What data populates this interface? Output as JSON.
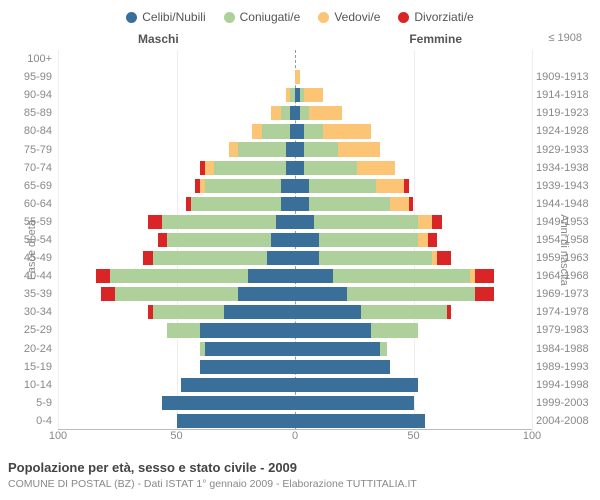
{
  "legend": [
    {
      "label": "Celibi/Nubili",
      "color": "#3a6f9a"
    },
    {
      "label": "Coniugati/e",
      "color": "#aed09a"
    },
    {
      "label": "Vedovi/e",
      "color": "#fbc575"
    },
    {
      "label": "Divorziati/e",
      "color": "#d92525"
    }
  ],
  "headers": {
    "male": "Maschi",
    "female": "Femmine",
    "right_top": "≤ 1908"
  },
  "axis": {
    "y_left_title": "Fasce di età",
    "y_right_title": "Anni di nascita",
    "x_max": 100,
    "x_ticks": [
      100,
      50,
      0,
      50,
      100
    ]
  },
  "footer": {
    "title": "Popolazione per età, sesso e stato civile - 2009",
    "sub": "COMUNE DI POSTAL (BZ) - Dati ISTAT 1° gennaio 2009 - Elaborazione TUTTITALIA.IT"
  },
  "rows": [
    {
      "age": "0-4",
      "year": "2004-2008",
      "m": [
        50,
        0,
        0,
        0
      ],
      "f": [
        55,
        0,
        0,
        0
      ]
    },
    {
      "age": "5-9",
      "year": "1999-2003",
      "m": [
        56,
        0,
        0,
        0
      ],
      "f": [
        50,
        0,
        0,
        0
      ]
    },
    {
      "age": "10-14",
      "year": "1994-1998",
      "m": [
        48,
        0,
        0,
        0
      ],
      "f": [
        52,
        0,
        0,
        0
      ]
    },
    {
      "age": "15-19",
      "year": "1989-1993",
      "m": [
        40,
        0,
        0,
        0
      ],
      "f": [
        40,
        0,
        0,
        0
      ]
    },
    {
      "age": "20-24",
      "year": "1984-1988",
      "m": [
        38,
        2,
        0,
        0
      ],
      "f": [
        36,
        3,
        0,
        0
      ]
    },
    {
      "age": "25-29",
      "year": "1979-1983",
      "m": [
        40,
        14,
        0,
        0
      ],
      "f": [
        32,
        20,
        0,
        0
      ]
    },
    {
      "age": "30-34",
      "year": "1974-1978",
      "m": [
        30,
        30,
        0,
        2
      ],
      "f": [
        28,
        36,
        0,
        2
      ]
    },
    {
      "age": "35-39",
      "year": "1969-1973",
      "m": [
        24,
        52,
        0,
        6
      ],
      "f": [
        22,
        54,
        0,
        8
      ]
    },
    {
      "age": "40-44",
      "year": "1964-1968",
      "m": [
        20,
        58,
        0,
        6
      ],
      "f": [
        16,
        58,
        2,
        8
      ]
    },
    {
      "age": "45-49",
      "year": "1959-1963",
      "m": [
        12,
        48,
        0,
        4
      ],
      "f": [
        10,
        48,
        2,
        6
      ]
    },
    {
      "age": "50-54",
      "year": "1954-1958",
      "m": [
        10,
        44,
        0,
        4
      ],
      "f": [
        10,
        42,
        4,
        4
      ]
    },
    {
      "age": "55-59",
      "year": "1949-1953",
      "m": [
        8,
        48,
        0,
        6
      ],
      "f": [
        8,
        44,
        6,
        4
      ]
    },
    {
      "age": "60-64",
      "year": "1944-1948",
      "m": [
        6,
        38,
        0,
        2
      ],
      "f": [
        6,
        34,
        8,
        2
      ]
    },
    {
      "age": "65-69",
      "year": "1939-1943",
      "m": [
        6,
        32,
        2,
        2
      ],
      "f": [
        6,
        28,
        12,
        2
      ]
    },
    {
      "age": "70-74",
      "year": "1934-1938",
      "m": [
        4,
        30,
        4,
        2
      ],
      "f": [
        4,
        22,
        16,
        0
      ]
    },
    {
      "age": "75-79",
      "year": "1929-1933",
      "m": [
        4,
        20,
        4,
        0
      ],
      "f": [
        4,
        14,
        18,
        0
      ]
    },
    {
      "age": "80-84",
      "year": "1924-1928",
      "m": [
        2,
        12,
        4,
        0
      ],
      "f": [
        4,
        8,
        20,
        0
      ]
    },
    {
      "age": "85-89",
      "year": "1919-1923",
      "m": [
        2,
        4,
        4,
        0
      ],
      "f": [
        2,
        4,
        14,
        0
      ]
    },
    {
      "age": "90-94",
      "year": "1914-1918",
      "m": [
        0,
        2,
        2,
        0
      ],
      "f": [
        2,
        2,
        8,
        0
      ]
    },
    {
      "age": "95-99",
      "year": "1909-1913",
      "m": [
        0,
        0,
        0,
        0
      ],
      "f": [
        0,
        0,
        2,
        0
      ]
    },
    {
      "age": "100+",
      "year": "",
      "m": [
        0,
        0,
        0,
        0
      ],
      "f": [
        0,
        0,
        0,
        0
      ]
    }
  ]
}
